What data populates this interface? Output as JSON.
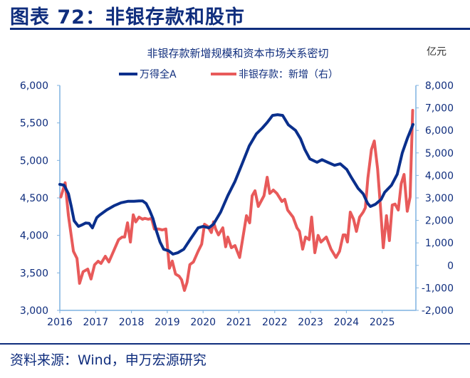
{
  "header": {
    "title": "图表 72：非银存款和股市"
  },
  "footer": {
    "source": "资料来源：Wind，申万宏源研究"
  },
  "chart_data": {
    "type": "line",
    "title": "非银存款新增规模和资本市场关系密切",
    "right_unit": "亿元",
    "grid": false,
    "legend_position": "top",
    "x_ticks": [
      "2016",
      "2017",
      "2018",
      "2019",
      "2020",
      "2021",
      "2022",
      "2023",
      "2024",
      "2025"
    ],
    "xlim": [
      2016,
      2025.9
    ],
    "left_axis": {
      "ylim": [
        3000,
        6000
      ],
      "ticks": [
        "3,000",
        "3,500",
        "4,000",
        "4,500",
        "5,000",
        "5,500",
        "6,000"
      ]
    },
    "right_axis": {
      "ylim": [
        -2000,
        8000
      ],
      "ticks": [
        "-2,000",
        "-1,000",
        "0",
        "1,000",
        "2,000",
        "3,000",
        "4,000",
        "5,000",
        "6,000",
        "7,000",
        "8,000"
      ]
    },
    "series": [
      {
        "name": "万得全A",
        "axis": "left",
        "color": "#0a2f8c",
        "points": [
          [
            2016.0,
            4680
          ],
          [
            2016.12,
            4670
          ],
          [
            2016.24,
            4556
          ],
          [
            2016.32,
            4385
          ],
          [
            2016.4,
            4195
          ],
          [
            2016.52,
            4120
          ],
          [
            2016.62,
            4140
          ],
          [
            2016.72,
            4165
          ],
          [
            2016.82,
            4160
          ],
          [
            2016.91,
            4100
          ],
          [
            2017.03,
            4235
          ],
          [
            2017.11,
            4270
          ],
          [
            2017.31,
            4340
          ],
          [
            2017.51,
            4395
          ],
          [
            2017.71,
            4435
          ],
          [
            2017.91,
            4455
          ],
          [
            2018.07,
            4455
          ],
          [
            2018.21,
            4460
          ],
          [
            2018.31,
            4460
          ],
          [
            2018.41,
            4425
          ],
          [
            2018.5,
            4340
          ],
          [
            2018.6,
            4225
          ],
          [
            2018.7,
            4055
          ],
          [
            2018.8,
            3910
          ],
          [
            2018.9,
            3815
          ],
          [
            2019.04,
            3795
          ],
          [
            2019.16,
            3750
          ],
          [
            2019.3,
            3770
          ],
          [
            2019.46,
            3815
          ],
          [
            2019.66,
            3960
          ],
          [
            2019.86,
            4100
          ],
          [
            2020.0,
            4120
          ],
          [
            2020.16,
            4100
          ],
          [
            2020.29,
            4150
          ],
          [
            2020.49,
            4310
          ],
          [
            2020.69,
            4530
          ],
          [
            2020.89,
            4720
          ],
          [
            2021.09,
            4955
          ],
          [
            2021.29,
            5195
          ],
          [
            2021.49,
            5355
          ],
          [
            2021.65,
            5430
          ],
          [
            2021.79,
            5505
          ],
          [
            2021.94,
            5600
          ],
          [
            2022.08,
            5610
          ],
          [
            2022.22,
            5600
          ],
          [
            2022.38,
            5475
          ],
          [
            2022.58,
            5400
          ],
          [
            2022.72,
            5290
          ],
          [
            2022.84,
            5145
          ],
          [
            2022.98,
            5020
          ],
          [
            2023.18,
            4975
          ],
          [
            2023.32,
            5010
          ],
          [
            2023.48,
            4975
          ],
          [
            2023.67,
            4935
          ],
          [
            2023.83,
            4955
          ],
          [
            2024.01,
            4880
          ],
          [
            2024.15,
            4765
          ],
          [
            2024.33,
            4625
          ],
          [
            2024.47,
            4555
          ],
          [
            2024.59,
            4430
          ],
          [
            2024.67,
            4385
          ],
          [
            2024.81,
            4415
          ],
          [
            2024.97,
            4480
          ],
          [
            2025.07,
            4575
          ],
          [
            2025.26,
            4670
          ],
          [
            2025.42,
            4815
          ],
          [
            2025.56,
            5100
          ],
          [
            2025.7,
            5290
          ],
          [
            2025.86,
            5480
          ]
        ]
      },
      {
        "name": "非银存款：新增（右）",
        "axis": "right",
        "color": "#e85a5a",
        "points": [
          [
            2016.03,
            3040
          ],
          [
            2016.15,
            3673
          ],
          [
            2016.24,
            2208
          ],
          [
            2016.38,
            626
          ],
          [
            2016.48,
            309
          ],
          [
            2016.55,
            -799
          ],
          [
            2016.65,
            -283
          ],
          [
            2016.78,
            -166
          ],
          [
            2016.87,
            -609
          ],
          [
            2016.97,
            24
          ],
          [
            2017.07,
            182
          ],
          [
            2017.15,
            87
          ],
          [
            2017.27,
            404
          ],
          [
            2017.37,
            151
          ],
          [
            2017.64,
            1141
          ],
          [
            2017.74,
            1259
          ],
          [
            2017.81,
            1259
          ],
          [
            2017.89,
            1892
          ],
          [
            2017.97,
            1037
          ],
          [
            2018.05,
            2249
          ],
          [
            2018.12,
            1933
          ],
          [
            2018.21,
            2145
          ],
          [
            2018.31,
            2050
          ],
          [
            2018.37,
            2091
          ],
          [
            2018.47,
            2050
          ],
          [
            2018.56,
            2091
          ],
          [
            2018.64,
            1616
          ],
          [
            2018.76,
            1616
          ],
          [
            2018.86,
            1575
          ],
          [
            2018.96,
            1616
          ],
          [
            2019.06,
            -125
          ],
          [
            2019.14,
            192
          ],
          [
            2019.23,
            -387
          ],
          [
            2019.33,
            -482
          ],
          [
            2019.4,
            -640
          ],
          [
            2019.48,
            -1115
          ],
          [
            2019.55,
            -758
          ],
          [
            2019.63,
            34
          ],
          [
            2019.73,
            151
          ],
          [
            2019.86,
            626
          ],
          [
            2019.96,
            942
          ],
          [
            2020.04,
            1828
          ],
          [
            2020.13,
            1733
          ],
          [
            2020.23,
            1458
          ],
          [
            2020.29,
            1933
          ],
          [
            2020.35,
            1616
          ],
          [
            2020.43,
            1353
          ],
          [
            2020.55,
            1670
          ],
          [
            2020.63,
            825
          ],
          [
            2020.69,
            1259
          ],
          [
            2020.79,
            784
          ],
          [
            2020.89,
            879
          ],
          [
            2021.02,
            350
          ],
          [
            2021.21,
            2208
          ],
          [
            2021.3,
            1892
          ],
          [
            2021.37,
            3094
          ],
          [
            2021.45,
            3316
          ],
          [
            2021.54,
            2619
          ],
          [
            2021.7,
            3094
          ],
          [
            2021.79,
            3917
          ],
          [
            2021.86,
            3199
          ],
          [
            2021.96,
            3347
          ],
          [
            2022.06,
            3199
          ],
          [
            2022.2,
            2841
          ],
          [
            2022.28,
            2936
          ],
          [
            2022.36,
            2461
          ],
          [
            2022.51,
            2145
          ],
          [
            2022.62,
            1670
          ],
          [
            2022.69,
            1512
          ],
          [
            2022.78,
            720
          ],
          [
            2022.86,
            1259
          ],
          [
            2022.96,
            1141
          ],
          [
            2023.03,
            2145
          ],
          [
            2023.12,
            562
          ],
          [
            2023.21,
            1331
          ],
          [
            2023.29,
            1037
          ],
          [
            2023.44,
            1259
          ],
          [
            2023.57,
            720
          ],
          [
            2023.71,
            350
          ],
          [
            2023.81,
            626
          ],
          [
            2023.91,
            1353
          ],
          [
            2023.97,
            1353
          ],
          [
            2024.03,
            1037
          ],
          [
            2024.11,
            2366
          ],
          [
            2024.2,
            2050
          ],
          [
            2024.28,
            1512
          ],
          [
            2024.37,
            2145
          ],
          [
            2024.47,
            2366
          ],
          [
            2024.53,
            2566
          ],
          [
            2024.6,
            3885
          ],
          [
            2024.7,
            5151
          ],
          [
            2024.78,
            5531
          ],
          [
            2024.87,
            4306
          ],
          [
            2024.95,
            2619
          ],
          [
            2025.03,
            784
          ],
          [
            2025.12,
            2208
          ],
          [
            2025.2,
            1100
          ],
          [
            2025.28,
            2683
          ],
          [
            2025.36,
            2725
          ],
          [
            2025.45,
            2461
          ],
          [
            2025.53,
            3632
          ],
          [
            2025.61,
            4044
          ],
          [
            2025.7,
            2408
          ],
          [
            2025.78,
            3040
          ],
          [
            2025.85,
            6892
          ]
        ]
      }
    ]
  }
}
